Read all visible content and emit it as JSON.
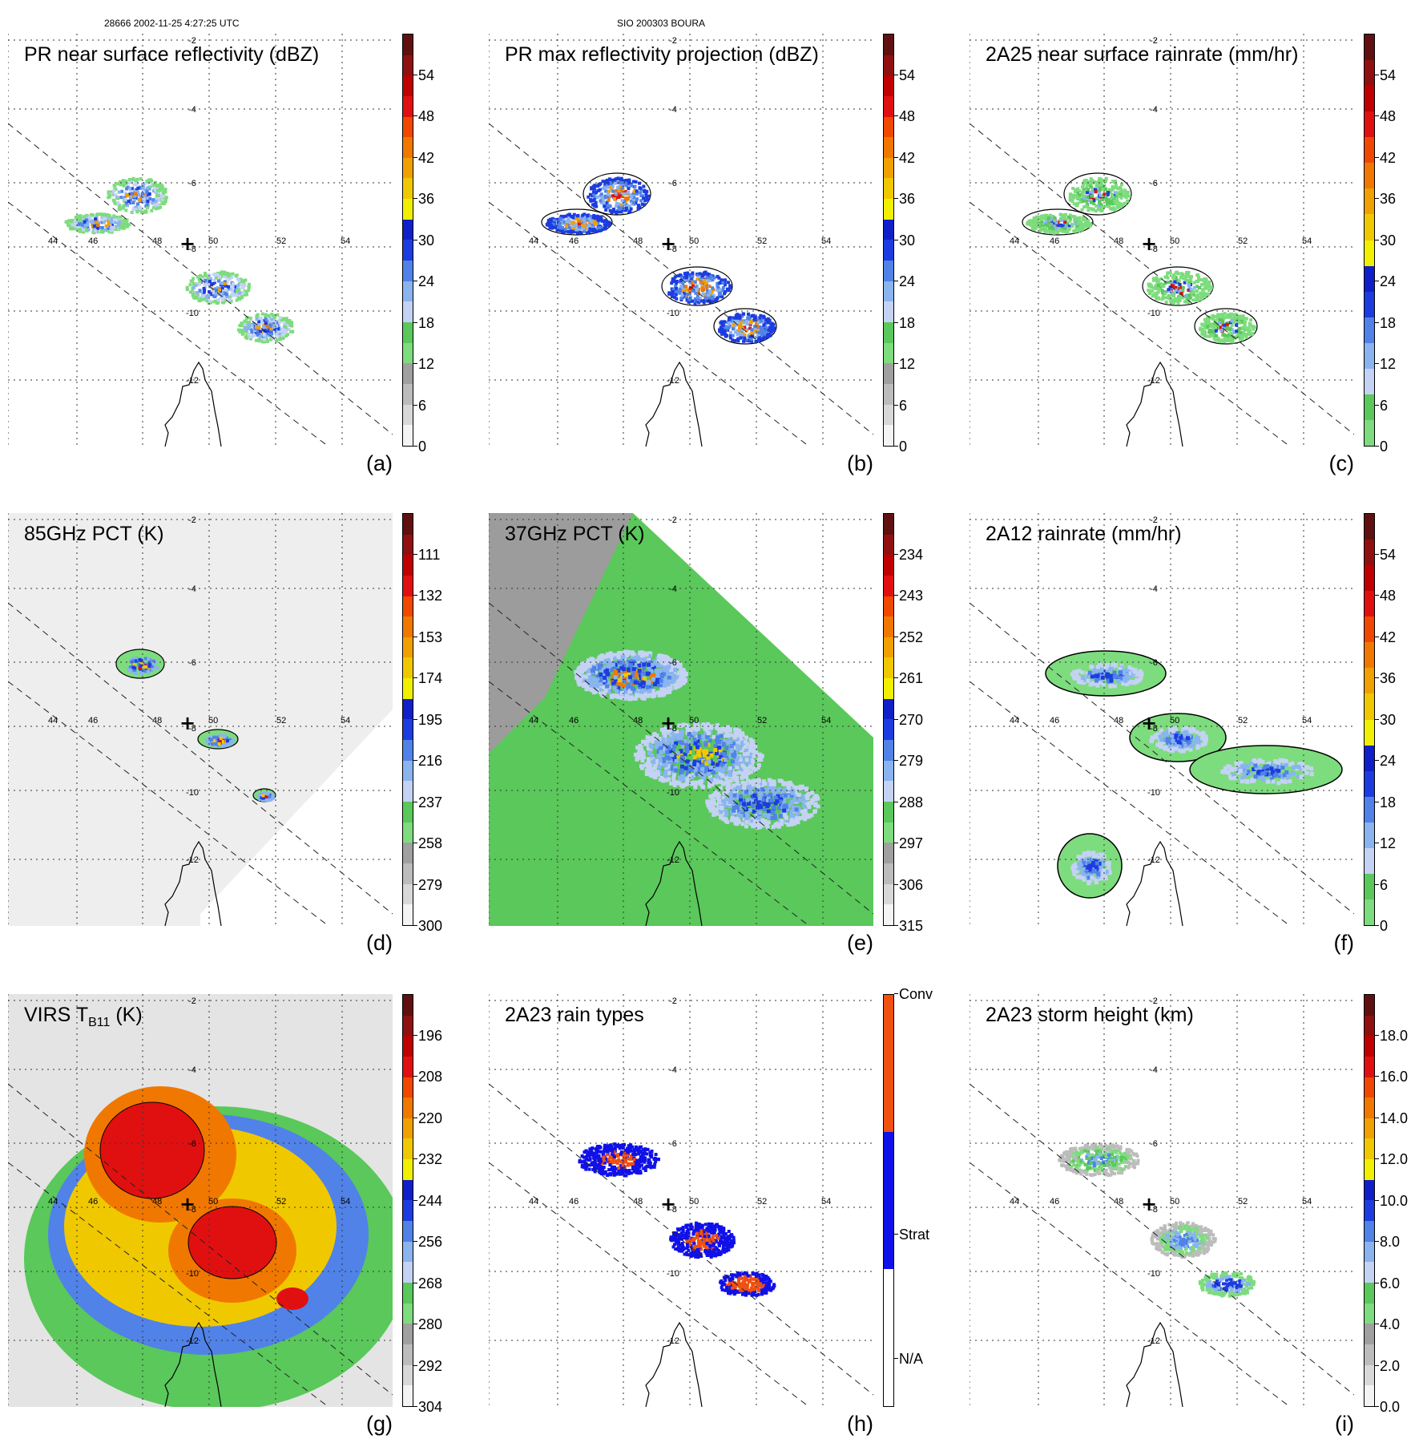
{
  "header": {
    "left": "28666 2002-11-25 4:27:25 UTC",
    "center": "SIO 200303 BOURA"
  },
  "grid": {
    "lon_labels": [
      "44",
      "46",
      "48",
      "50",
      "52",
      "54"
    ],
    "lat_labels": [
      "-2",
      "-4",
      "-6",
      "-8",
      "-10",
      "-12"
    ]
  },
  "panels": [
    {
      "id": "a",
      "title": "PR near surface reflectivity (dBZ)",
      "letter": "(a)",
      "ticks": [
        "0",
        "6",
        "12",
        "18",
        "24",
        "30",
        "36",
        "42",
        "48",
        "54"
      ],
      "colors": [
        "#f4f4f4",
        "#d8d8d8",
        "#bcbcbc",
        "#a0a0a0",
        "#7ddc7d",
        "#5ac85a",
        "#c4d2f4",
        "#8ab4f0",
        "#5082e8",
        "#1c3ce0",
        "#1020c8",
        "#f0f000",
        "#f0c800",
        "#f0a000",
        "#f07800",
        "#f04800",
        "#e01010",
        "#c00000",
        "#901010",
        "#601010"
      ],
      "data": "swath_pr"
    },
    {
      "id": "b",
      "title": "PR max reflectivity projection (dBZ)",
      "letter": "(b)",
      "ticks": [
        "0",
        "6",
        "12",
        "18",
        "24",
        "30",
        "36",
        "42",
        "48",
        "54"
      ],
      "colors": [
        "#f4f4f4",
        "#d8d8d8",
        "#bcbcbc",
        "#a0a0a0",
        "#7ddc7d",
        "#5ac85a",
        "#c4d2f4",
        "#8ab4f0",
        "#5082e8",
        "#1c3ce0",
        "#1020c8",
        "#f0f000",
        "#f0c800",
        "#f0a000",
        "#f07800",
        "#f04800",
        "#e01010",
        "#c00000",
        "#901010",
        "#601010"
      ],
      "data": "swath_pr_max"
    },
    {
      "id": "c",
      "title": "2A25 near surface rainrate (mm/hr)",
      "letter": "(c)",
      "ticks": [
        "0",
        "6",
        "12",
        "18",
        "24",
        "30",
        "36",
        "42",
        "48",
        "54"
      ],
      "colors": [
        "#7ddc7d",
        "#5ac85a",
        "#c4d2f4",
        "#8ab4f0",
        "#5082e8",
        "#1c3ce0",
        "#1020c8",
        "#f0f000",
        "#f0c800",
        "#f0a000",
        "#f07800",
        "#f04800",
        "#e01010",
        "#c00000",
        "#901010",
        "#601010"
      ],
      "data": "swath_rr"
    },
    {
      "id": "d",
      "title": "85GHz PCT (K)",
      "letter": "(d)",
      "ticks": [
        "300",
        "279",
        "258",
        "237",
        "216",
        "195",
        "174",
        "153",
        "132",
        "111"
      ],
      "colors": [
        "#f4f4f4",
        "#d8d8d8",
        "#bcbcbc",
        "#a0a0a0",
        "#7ddc7d",
        "#5ac85a",
        "#c4d2f4",
        "#8ab4f0",
        "#5082e8",
        "#1c3ce0",
        "#1020c8",
        "#f0f000",
        "#f0c800",
        "#f0a000",
        "#f07800",
        "#f04800",
        "#e01010",
        "#c00000",
        "#901010",
        "#601010"
      ],
      "data": "tmi85"
    },
    {
      "id": "e",
      "title": "37GHz PCT (K)",
      "letter": "(e)",
      "ticks": [
        "315",
        "306",
        "297",
        "288",
        "279",
        "270",
        "261",
        "252",
        "243",
        "234"
      ],
      "colors": [
        "#f4f4f4",
        "#d8d8d8",
        "#bcbcbc",
        "#a0a0a0",
        "#7ddc7d",
        "#5ac85a",
        "#c4d2f4",
        "#8ab4f0",
        "#5082e8",
        "#1c3ce0",
        "#1020c8",
        "#f0f000",
        "#f0c800",
        "#f0a000",
        "#f07800",
        "#f04800",
        "#e01010",
        "#c00000",
        "#901010",
        "#601010"
      ],
      "data": "tmi37"
    },
    {
      "id": "f",
      "title": "2A12 rainrate (mm/hr)",
      "letter": "(f)",
      "ticks": [
        "0",
        "6",
        "12",
        "18",
        "24",
        "30",
        "36",
        "42",
        "48",
        "54"
      ],
      "colors": [
        "#7ddc7d",
        "#5ac85a",
        "#c4d2f4",
        "#8ab4f0",
        "#5082e8",
        "#1c3ce0",
        "#1020c8",
        "#f0f000",
        "#f0c800",
        "#f0a000",
        "#f07800",
        "#f04800",
        "#e01010",
        "#c00000",
        "#901010",
        "#601010"
      ],
      "data": "tmi_rr"
    },
    {
      "id": "g",
      "title": "VIRS T",
      "title_sub": "B11",
      "title_tail": " (K)",
      "letter": "(g)",
      "ticks": [
        "304",
        "292",
        "280",
        "268",
        "256",
        "244",
        "232",
        "220",
        "208",
        "196"
      ],
      "colors": [
        "#f4f4f4",
        "#d8d8d8",
        "#bcbcbc",
        "#a0a0a0",
        "#7ddc7d",
        "#5ac85a",
        "#c4d2f4",
        "#8ab4f0",
        "#5082e8",
        "#1c3ce0",
        "#1020c8",
        "#f0f000",
        "#f0c800",
        "#f0a000",
        "#f07800",
        "#f04800",
        "#e01010",
        "#c00000",
        "#901010",
        "#601010"
      ],
      "data": "virs"
    },
    {
      "id": "h",
      "title": "2A23 rain types",
      "letter": "(h)",
      "ticks": [
        "N/A",
        "Strat",
        "Conv"
      ],
      "colors": [
        "#ffffff",
        "#1010e8",
        "#f05010"
      ],
      "data": "raintype"
    },
    {
      "id": "i",
      "title": "2A23 storm height (km)",
      "letter": "(i)",
      "ticks": [
        "0.0",
        "2.0",
        "4.0",
        "6.0",
        "8.0",
        "10.0",
        "12.0",
        "14.0",
        "16.0",
        "18.0"
      ],
      "colors": [
        "#f4f4f4",
        "#d8d8d8",
        "#bcbcbc",
        "#a0a0a0",
        "#7ddc7d",
        "#5ac85a",
        "#c4d2f4",
        "#8ab4f0",
        "#5082e8",
        "#1c3ce0",
        "#1020c8",
        "#f0f000",
        "#f0c800",
        "#f0a000",
        "#f07800",
        "#f04800",
        "#e01010",
        "#c00000",
        "#901010",
        "#601010"
      ],
      "data": "height"
    }
  ]
}
